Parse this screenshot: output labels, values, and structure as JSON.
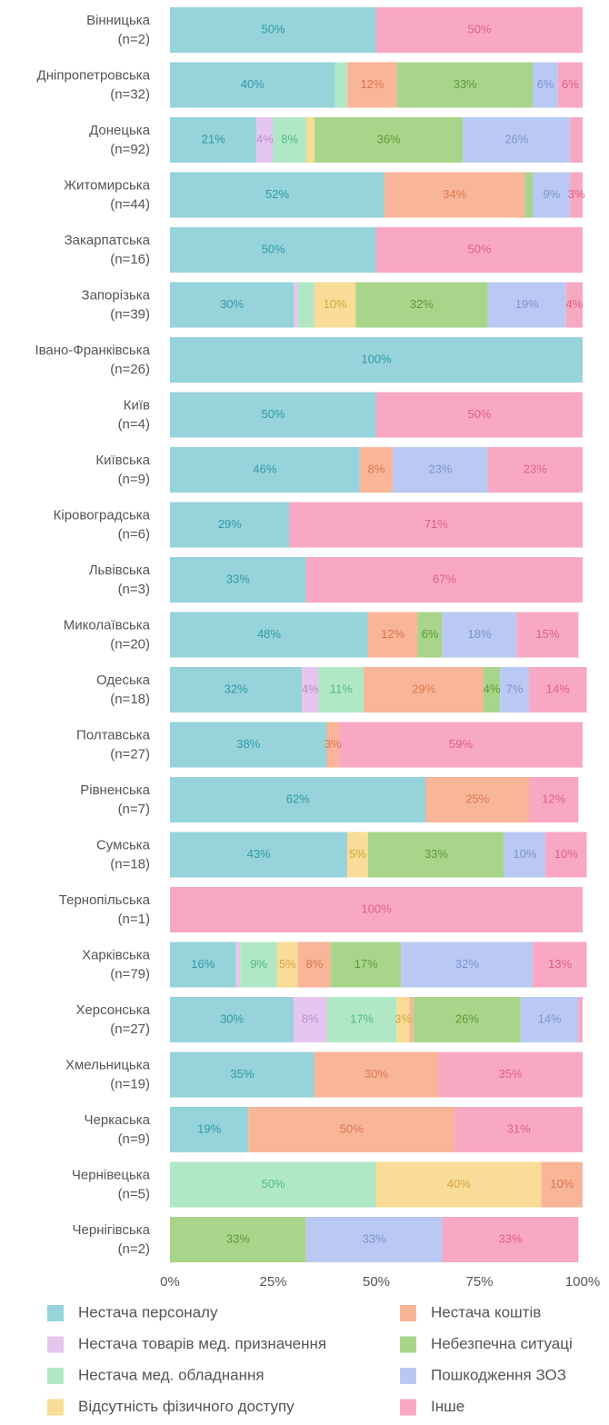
{
  "chart_data": {
    "type": "stacked_barh",
    "categories": [
      "Вінницька",
      "Дніпропетровська",
      "Донецька",
      "Житомирська",
      "Закарпатська",
      "Запорізька",
      "Івано-Франківська",
      "Київ",
      "Київська",
      "Кіровоградська",
      "Львівська",
      "Миколаївська",
      "Одеська",
      "Полтавська",
      "Рівненська",
      "Сумська",
      "Тернопільська",
      "Харківська",
      "Херсонська",
      "Хмельницька",
      "Черкаська",
      "Чернівецька",
      "Чернігівська"
    ],
    "n_labels": [
      "(n=2)",
      "(n=32)",
      "(n=92)",
      "(n=44)",
      "(n=16)",
      "(n=39)",
      "(n=26)",
      "(n=4)",
      "(n=9)",
      "(n=6)",
      "(n=3)",
      "(n=20)",
      "(n=18)",
      "(n=27)",
      "(n=7)",
      "(n=18)",
      "(n=1)",
      "(n=79)",
      "(n=27)",
      "(n=19)",
      "(n=9)",
      "(n=5)",
      "(n=2)"
    ],
    "xlim": [
      0,
      100
    ],
    "xticks": [
      {
        "value": 0,
        "label": "0%"
      },
      {
        "value": 25,
        "label": "25%"
      },
      {
        "value": 50,
        "label": "50%"
      },
      {
        "value": 75,
        "label": "75%"
      },
      {
        "value": 100,
        "label": "100%"
      }
    ],
    "series": [
      {
        "name": "Нестача персоналу",
        "color": "#96d3db",
        "label_color": "#2f9aa6",
        "values": [
          50,
          40,
          21,
          52,
          50,
          30,
          100,
          50,
          46,
          29,
          33,
          48,
          32,
          38,
          62,
          43,
          0,
          16,
          30,
          35,
          19,
          0,
          0
        ],
        "value_labels": [
          "50%",
          "40%",
          "21%",
          "52%",
          "50%",
          "30%",
          "100%",
          "50%",
          "46%",
          "29%",
          "33%",
          "48%",
          "32%",
          "38%",
          "62%",
          "43%",
          null,
          "16%",
          "30%",
          "35%",
          "19%",
          null,
          null
        ]
      },
      {
        "name": "Нестача товарів мед. призначення",
        "color": "#e6c6ef",
        "label_color": "#b98fcb",
        "values": [
          0,
          0,
          4,
          0,
          0,
          1,
          0,
          0,
          0,
          0,
          0,
          0,
          4,
          0,
          0,
          0,
          0,
          1,
          8,
          0,
          0,
          0,
          0
        ],
        "value_labels": [
          null,
          null,
          "4%",
          null,
          null,
          null,
          null,
          null,
          null,
          null,
          null,
          null,
          "4%",
          null,
          null,
          null,
          null,
          null,
          "8%",
          null,
          null,
          null,
          null
        ]
      },
      {
        "name": "Нестача мед. обладнання",
        "color": "#b0e8c6",
        "label_color": "#52b984",
        "values": [
          0,
          3,
          8,
          0,
          0,
          4,
          0,
          0,
          0,
          0,
          0,
          0,
          11,
          0,
          0,
          0,
          0,
          9,
          17,
          0,
          0,
          50,
          0
        ],
        "value_labels": [
          null,
          null,
          "8%",
          null,
          null,
          null,
          null,
          null,
          null,
          null,
          null,
          null,
          "11%",
          null,
          null,
          null,
          null,
          "9%",
          "17%",
          null,
          null,
          "50%",
          null
        ]
      },
      {
        "name": "Відсутність фізичного доступу",
        "color": "#f8dc97",
        "label_color": "#d4a640",
        "values": [
          0,
          0,
          2,
          0,
          0,
          10,
          0,
          0,
          0,
          0,
          0,
          0,
          0,
          0,
          0,
          5,
          0,
          5,
          3,
          0,
          0,
          40,
          0
        ],
        "value_labels": [
          null,
          null,
          null,
          null,
          null,
          "10%",
          null,
          null,
          null,
          null,
          null,
          null,
          null,
          null,
          null,
          "5%",
          null,
          "5%",
          "3%",
          null,
          null,
          "40%",
          null
        ]
      },
      {
        "name": "Нестача коштів",
        "color": "#f8b598",
        "label_color": "#d9784f",
        "values": [
          0,
          12,
          0,
          34,
          0,
          0,
          0,
          0,
          8,
          0,
          0,
          12,
          29,
          3,
          25,
          0,
          0,
          8,
          1,
          30,
          50,
          10,
          0
        ],
        "value_labels": [
          null,
          "12%",
          null,
          "34%",
          null,
          null,
          null,
          null,
          "8%",
          null,
          null,
          "12%",
          "29%",
          "3%",
          "25%",
          null,
          null,
          "8%",
          null,
          "30%",
          "50%",
          "10%",
          null
        ]
      },
      {
        "name": "Небезпечна ситуаці",
        "color": "#a9d58b",
        "label_color": "#5e9a35",
        "values": [
          0,
          33,
          36,
          2,
          0,
          32,
          0,
          0,
          0,
          0,
          0,
          6,
          4,
          0,
          0,
          33,
          0,
          17,
          26,
          0,
          0,
          0,
          33
        ],
        "value_labels": [
          null,
          "33%",
          "36%",
          null,
          null,
          "32%",
          null,
          null,
          null,
          null,
          null,
          "6%",
          "4%",
          null,
          null,
          "33%",
          null,
          "17%",
          "26%",
          null,
          null,
          null,
          "33%"
        ]
      },
      {
        "name": "Пошкодження ЗОЗ",
        "color": "#b9c9f3",
        "label_color": "#7d93d0",
        "values": [
          0,
          6,
          26,
          9,
          0,
          19,
          0,
          0,
          23,
          0,
          0,
          18,
          7,
          0,
          0,
          10,
          0,
          32,
          14,
          0,
          0,
          0,
          33
        ],
        "value_labels": [
          null,
          "6%",
          "26%",
          "9%",
          null,
          "19%",
          null,
          null,
          "23%",
          null,
          null,
          "18%",
          "7%",
          null,
          null,
          "10%",
          null,
          "32%",
          "14%",
          null,
          null,
          null,
          "33%"
        ]
      },
      {
        "name": "Інше",
        "color": "#f9a8c4",
        "label_color": "#dd5f8b",
        "values": [
          50,
          6,
          3,
          3,
          50,
          4,
          0,
          50,
          23,
          71,
          67,
          15,
          14,
          59,
          12,
          10,
          100,
          13,
          1,
          35,
          31,
          0,
          33
        ],
        "value_labels": [
          "50%",
          "6%",
          null,
          "3%",
          "50%",
          "4%",
          null,
          "50%",
          "23%",
          "71%",
          "67%",
          "15%",
          "14%",
          "59%",
          "12%",
          "10%",
          "100%",
          "13%",
          null,
          "35%",
          "31%",
          null,
          "33%"
        ]
      }
    ]
  }
}
